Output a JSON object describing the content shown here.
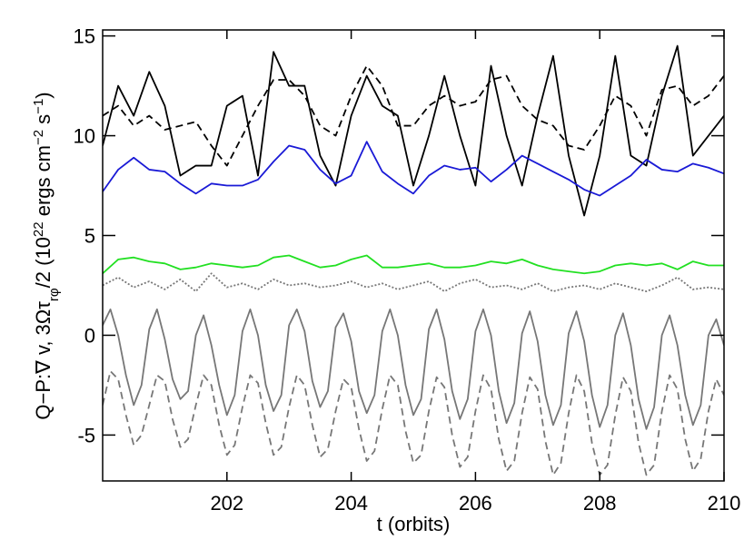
{
  "chart_data": {
    "type": "line",
    "xlabel": "t (orbits)",
    "ylabel_parts": [
      {
        "text": "Q−P:∇ v, 3Ωτ",
        "shift": "none"
      },
      {
        "text": "rφ",
        "shift": "sub"
      },
      {
        "text": "/2 (10",
        "shift": "none"
      },
      {
        "text": "22",
        "shift": "sup"
      },
      {
        "text": " ergs cm",
        "shift": "none"
      },
      {
        "text": "−2",
        "shift": "sup"
      },
      {
        "text": " s",
        "shift": "none"
      },
      {
        "text": "−1",
        "shift": "sup"
      },
      {
        "text": ")",
        "shift": "none"
      }
    ],
    "xlim": [
      200,
      210
    ],
    "xticks": [
      202,
      204,
      206,
      208,
      210
    ],
    "ylim": [
      -7.3,
      15.3
    ],
    "yticks": [
      -5,
      0,
      5,
      10,
      15
    ],
    "x": [
      200,
      200.25,
      200.5,
      200.75,
      201,
      201.25,
      201.5,
      201.75,
      202,
      202.25,
      202.5,
      202.75,
      203,
      203.25,
      203.5,
      203.75,
      204,
      204.25,
      204.5,
      204.75,
      205,
      205.25,
      205.5,
      205.75,
      206,
      206.25,
      206.5,
      206.75,
      207,
      207.25,
      207.5,
      207.75,
      208,
      208.25,
      208.5,
      208.75,
      209,
      209.25,
      209.5,
      209.75,
      210
    ],
    "series": [
      {
        "color": "#000000",
        "style": "solid",
        "values": [
          9.5,
          12.5,
          11,
          13.2,
          11.5,
          8,
          8.5,
          8.5,
          11.5,
          12,
          8,
          14.2,
          12.5,
          12.5,
          9,
          7.5,
          11,
          13,
          11.5,
          11,
          7.5,
          10,
          13,
          10,
          7.5,
          13.5,
          10,
          7.5,
          11,
          14,
          9,
          6,
          9,
          14,
          9,
          8.5,
          12,
          14.5,
          9,
          10,
          11
        ]
      },
      {
        "color": "#000000",
        "style": "dashed",
        "values": [
          11,
          11.5,
          10.5,
          11,
          10.3,
          10.5,
          10.7,
          9.5,
          8.5,
          10,
          11.5,
          12.8,
          12.8,
          12,
          10.5,
          10,
          12,
          13.5,
          12.5,
          10.5,
          10.5,
          11.5,
          12,
          11.5,
          11.7,
          12.8,
          13,
          11.5,
          10.8,
          10.5,
          9.5,
          9.3,
          10.5,
          12,
          11.5,
          10,
          12.3,
          12.5,
          11.5,
          12,
          13
        ]
      },
      {
        "color": "#1a1ad6",
        "style": "solid",
        "values": [
          7.2,
          8.3,
          8.9,
          8.3,
          8.2,
          7.6,
          7.1,
          7.6,
          7.5,
          7.5,
          7.8,
          8.7,
          9.5,
          9.3,
          8.3,
          7.6,
          8,
          9.7,
          8.2,
          7.6,
          7.1,
          8,
          8.5,
          8.3,
          8.4,
          7.7,
          8.3,
          9,
          8.6,
          8.2,
          7.8,
          7.3,
          7,
          7.5,
          8,
          8.8,
          8.3,
          8.2,
          8.6,
          8.4,
          8.1
        ]
      },
      {
        "color": "#22e022",
        "style": "solid",
        "values": [
          3.1,
          3.8,
          3.9,
          3.7,
          3.6,
          3.3,
          3.4,
          3.6,
          3.5,
          3.4,
          3.5,
          3.9,
          4,
          3.7,
          3.4,
          3.5,
          3.8,
          4,
          3.4,
          3.4,
          3.5,
          3.6,
          3.4,
          3.4,
          3.5,
          3.7,
          3.6,
          3.8,
          3.5,
          3.3,
          3.2,
          3.1,
          3.2,
          3.5,
          3.6,
          3.5,
          3.6,
          3.3,
          3.7,
          3.5,
          3.5
        ]
      },
      {
        "color": "#777777",
        "style": "dotted",
        "values": [
          2.5,
          2.9,
          2.4,
          2.7,
          2.3,
          2.8,
          2.2,
          3.1,
          2.4,
          2.6,
          2.3,
          2.8,
          2.5,
          2.6,
          2.4,
          2.5,
          2.7,
          2.4,
          2.6,
          2.3,
          2.5,
          2.7,
          2.2,
          2.6,
          2.8,
          2.4,
          2.5,
          2.3,
          2.6,
          2.2,
          2.4,
          2.5,
          2.3,
          2.6,
          2.4,
          2.2,
          2.5,
          2.9,
          2.3,
          2.4,
          2.3
        ]
      },
      {
        "color": "#777777",
        "style": "solid",
        "x": [
          200,
          200.125,
          200.25,
          200.375,
          200.5,
          200.625,
          200.75,
          200.875,
          201,
          201.125,
          201.25,
          201.375,
          201.5,
          201.625,
          201.75,
          201.875,
          202,
          202.125,
          202.25,
          202.375,
          202.5,
          202.625,
          202.75,
          202.875,
          203,
          203.125,
          203.25,
          203.375,
          203.5,
          203.625,
          203.75,
          203.875,
          204,
          204.125,
          204.25,
          204.375,
          204.5,
          204.625,
          204.75,
          204.875,
          205,
          205.125,
          205.25,
          205.375,
          205.5,
          205.625,
          205.75,
          205.875,
          206,
          206.125,
          206.25,
          206.375,
          206.5,
          206.625,
          206.75,
          206.875,
          207,
          207.125,
          207.25,
          207.375,
          207.5,
          207.625,
          207.75,
          207.875,
          208,
          208.125,
          208.25,
          208.375,
          208.5,
          208.625,
          208.75,
          208.875,
          209,
          209.125,
          209.25,
          209.375,
          209.5,
          209.625,
          209.75,
          209.875,
          210
        ],
        "values": [
          0.5,
          1.3,
          0,
          -2,
          -3.5,
          -2.5,
          0.3,
          1.3,
          -0.2,
          -2.2,
          -3.2,
          -2.8,
          0,
          1,
          -0.5,
          -2.5,
          -4,
          -3,
          0.2,
          1.3,
          0,
          -2.5,
          -3.8,
          -3,
          0.5,
          1.3,
          0.2,
          -2.3,
          -3.6,
          -2.8,
          0.4,
          1.1,
          -0.3,
          -2.8,
          -3.9,
          -3,
          0.2,
          1.3,
          0,
          -2.5,
          -4,
          -3.2,
          0.3,
          1.3,
          -0.2,
          -2.8,
          -4.2,
          -3.2,
          0.2,
          1.3,
          0,
          -2.8,
          -4.4,
          -3.4,
          0.1,
          1.2,
          -0.3,
          -3,
          -4.5,
          -3.5,
          0.1,
          1.2,
          -0.3,
          -3,
          -4.6,
          -3.5,
          0,
          1.1,
          -0.5,
          -3.2,
          -4.7,
          -3.6,
          0,
          1,
          -0.5,
          -3,
          -4.5,
          -3.5,
          0,
          0.8,
          -0.5
        ]
      },
      {
        "color": "#777777",
        "style": "dashed",
        "x": [
          200,
          200.125,
          200.25,
          200.375,
          200.5,
          200.625,
          200.75,
          200.875,
          201,
          201.125,
          201.25,
          201.375,
          201.5,
          201.625,
          201.75,
          201.875,
          202,
          202.125,
          202.25,
          202.375,
          202.5,
          202.625,
          202.75,
          202.875,
          203,
          203.125,
          203.25,
          203.375,
          203.5,
          203.625,
          203.75,
          203.875,
          204,
          204.125,
          204.25,
          204.375,
          204.5,
          204.625,
          204.75,
          204.875,
          205,
          205.125,
          205.25,
          205.375,
          205.5,
          205.625,
          205.75,
          205.875,
          206,
          206.125,
          206.25,
          206.375,
          206.5,
          206.625,
          206.75,
          206.875,
          207,
          207.125,
          207.25,
          207.375,
          207.5,
          207.625,
          207.75,
          207.875,
          208,
          208.125,
          208.25,
          208.375,
          208.5,
          208.625,
          208.75,
          208.875,
          209,
          209.125,
          209.25,
          209.375,
          209.5,
          209.625,
          209.75,
          209.875,
          210
        ],
        "values": [
          -3.5,
          -1.8,
          -2.2,
          -4,
          -5.5,
          -5,
          -3.5,
          -2,
          -2.3,
          -4.2,
          -5.6,
          -5.2,
          -3.5,
          -2,
          -2.5,
          -4.5,
          -6,
          -5.5,
          -3.6,
          -2,
          -2.4,
          -4.4,
          -6,
          -5.6,
          -3.6,
          -2,
          -2.5,
          -4.5,
          -6.1,
          -5.7,
          -3.8,
          -2.2,
          -2.6,
          -4.7,
          -6.3,
          -5.8,
          -3.7,
          -2,
          -2.5,
          -4.8,
          -6.4,
          -6,
          -3.8,
          -2.1,
          -2.6,
          -5,
          -6.6,
          -6.1,
          -3.8,
          -2,
          -2.7,
          -5.2,
          -6.8,
          -6.3,
          -3.9,
          -2.1,
          -2.7,
          -5.3,
          -7,
          -6.4,
          -3.9,
          -2,
          -2.8,
          -5.4,
          -7,
          -6.5,
          -4,
          -2.1,
          -2.8,
          -5.4,
          -7,
          -6.5,
          -3.8,
          -2,
          -2.7,
          -5.2,
          -6.8,
          -6.2,
          -3.8,
          -2.2,
          -3
        ]
      }
    ]
  }
}
